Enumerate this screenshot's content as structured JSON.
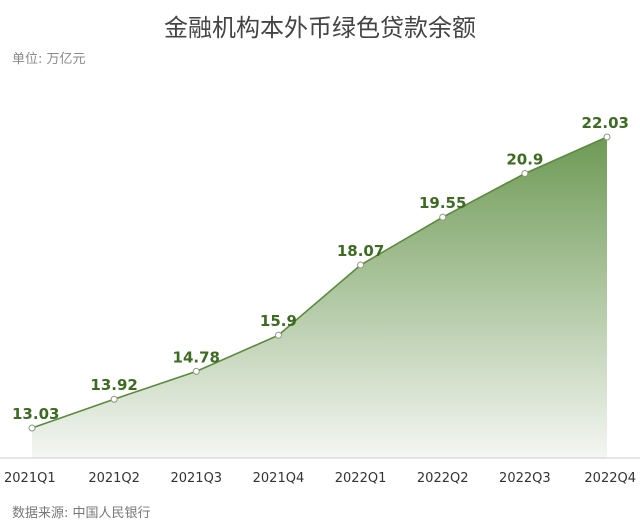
{
  "title": "金融机构本外币绿色贷款余额",
  "unit": "单位: 万亿元",
  "source": "数据来源: 中国人民银行",
  "colors": {
    "line": "#5a8a3c",
    "area_top": "#6e9a55",
    "area_bottom": "#f4f6f2",
    "label": "#3e6b22"
  },
  "chart_data": {
    "type": "area",
    "categories": [
      "2021Q1",
      "2021Q2",
      "2021Q3",
      "2021Q4",
      "2022Q1",
      "2022Q2",
      "2022Q3",
      "2022Q4"
    ],
    "values": [
      13.03,
      13.92,
      14.78,
      15.9,
      18.07,
      19.55,
      20.9,
      22.03
    ],
    "data_labels": [
      "13.03",
      "13.92",
      "14.78",
      "15.9",
      "18.07",
      "19.55",
      "20.9",
      "22.03"
    ],
    "title": "金融机构本外币绿色贷款余额",
    "ylabel": "单位: 万亿元",
    "grid": false,
    "legend": "none"
  }
}
